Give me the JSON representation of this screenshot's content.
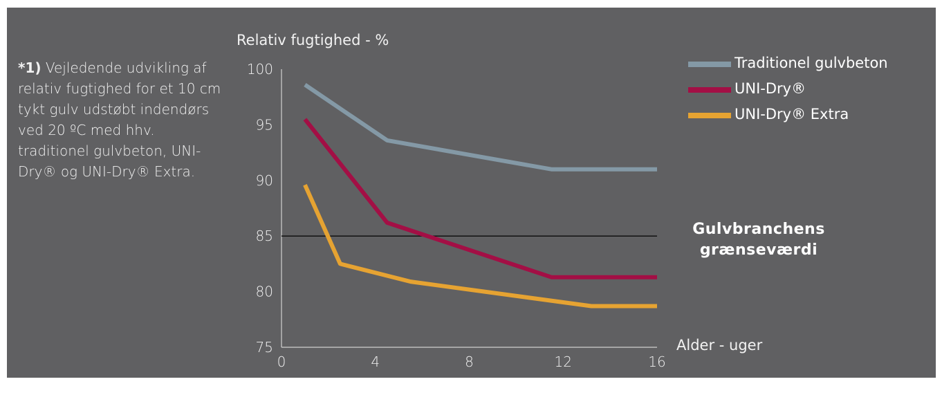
{
  "footnote": {
    "marker": "*1)",
    "text": " Vejledende udvikling af relativ fugtighed for et 10 cm tykt gulv udstøbt indendørs ved 20 ºC med hhv. traditionel gulvbeton, UNI-Dry® og UNI-Dry® Extra."
  },
  "colors": {
    "panel_background": "#606062",
    "text": "#f2f2f2",
    "traditionel": "#8499a6",
    "uni_dry": "#a30f45",
    "uni_dry_extra": "#e6a332",
    "threshold_line": "#111111"
  },
  "chart_data": {
    "type": "line",
    "ylabel": "Relativ fugtighed - %",
    "xlabel": "Alder - uger",
    "xlim": [
      0,
      16
    ],
    "ylim": [
      75,
      100
    ],
    "xticks": [
      0,
      4,
      8,
      12,
      16
    ],
    "yticks": [
      75,
      80,
      85,
      90,
      95,
      100
    ],
    "grid": false,
    "legend_position": "top-right",
    "series": [
      {
        "name": "Traditionel gulvbeton",
        "x": [
          1,
          4.5,
          11.5,
          16
        ],
        "y": [
          98.6,
          93.6,
          91,
          91
        ]
      },
      {
        "name": "UNI-Dry®",
        "x": [
          1,
          4.5,
          11.5,
          16
        ],
        "y": [
          95.5,
          86.2,
          81.3,
          81.3
        ]
      },
      {
        "name": "UNI-Dry® Extra",
        "x": [
          1,
          2.5,
          5.5,
          13.2,
          16
        ],
        "y": [
          89.6,
          82.5,
          80.9,
          78.7,
          78.7
        ]
      }
    ],
    "reference_line": {
      "y": 85,
      "label": "Gulvbranchens grænseværdi"
    }
  }
}
